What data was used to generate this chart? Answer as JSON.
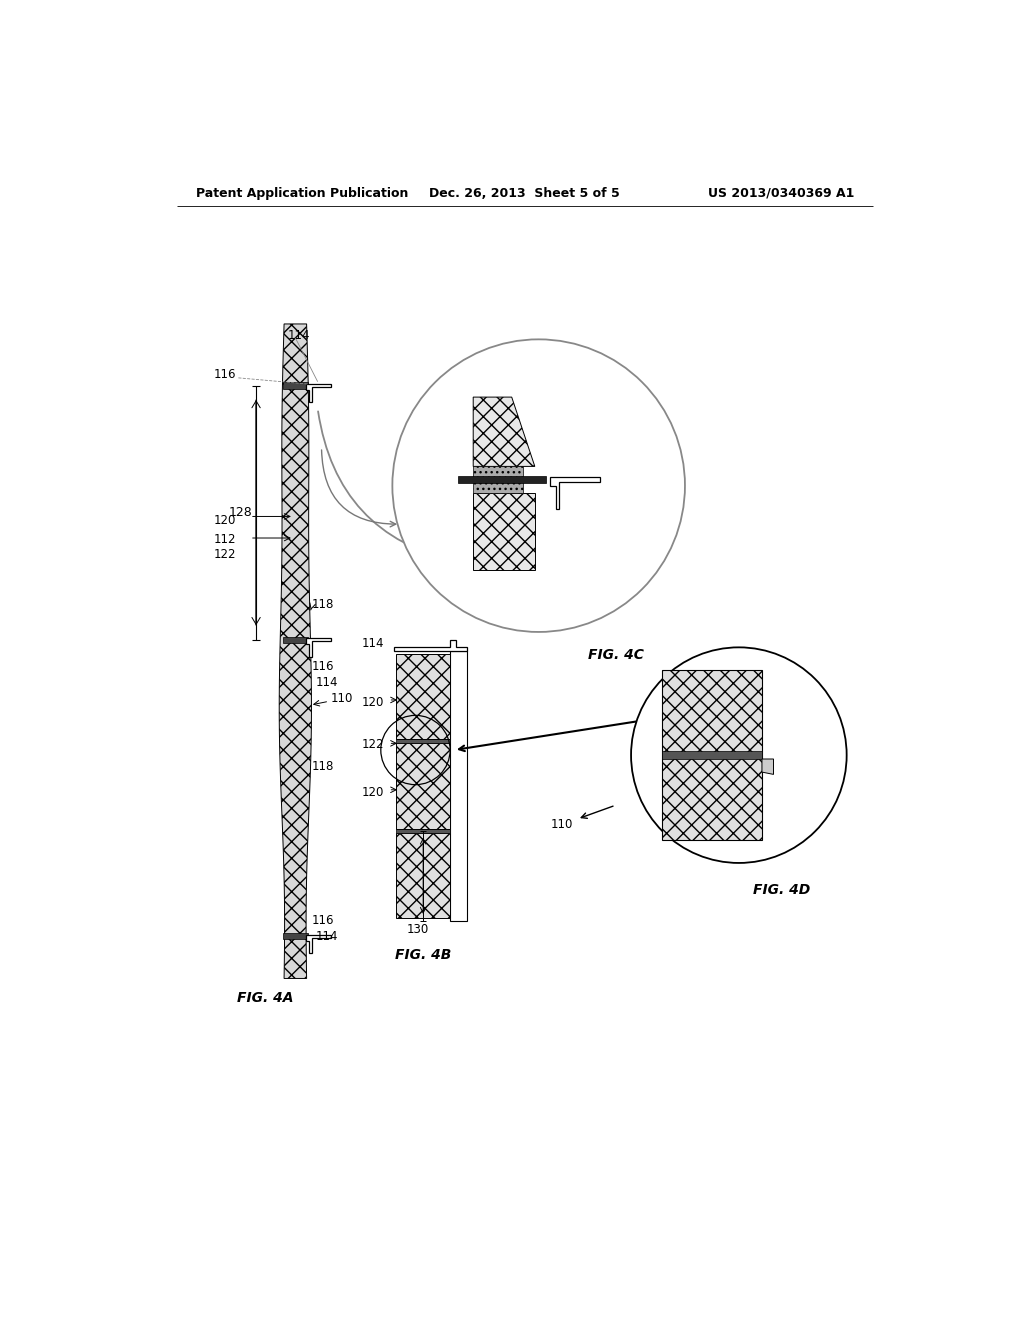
{
  "title_left": "Patent Application Publication",
  "title_center": "Dec. 26, 2013  Sheet 5 of 5",
  "title_right": "US 2013/0340369 A1",
  "fig4a": "FIG. 4A",
  "fig4b": "FIG. 4B",
  "fig4c": "FIG. 4C",
  "fig4d": "FIG. 4D",
  "bg_color": "#ffffff"
}
